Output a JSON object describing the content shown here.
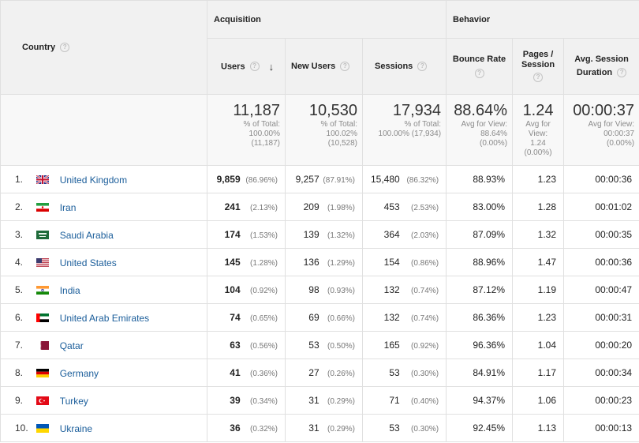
{
  "header": {
    "country": "Country",
    "acquisition": "Acquisition",
    "behavior": "Behavior",
    "users": "Users",
    "new_users": "New Users",
    "sessions": "Sessions",
    "bounce_rate": "Bounce Rate",
    "pages_session_1": "Pages /",
    "pages_session_2": "Session",
    "avg_session_1": "Avg. Session",
    "avg_session_2": "Duration",
    "help_glyph": "?",
    "sort_glyph": "↓"
  },
  "totals": {
    "users": {
      "big": "11,187",
      "l1": "% of Total:",
      "l2": "100.00%",
      "l3": "(11,187)"
    },
    "new_users": {
      "big": "10,530",
      "l1": "% of Total:",
      "l2": "100.02%",
      "l3": "(10,528)"
    },
    "sessions": {
      "big": "17,934",
      "l1": "% of Total:",
      "l2": "100.00% (17,934)"
    },
    "bounce_rate": {
      "big": "88.64%",
      "l1": "Avg for View:",
      "l2": "88.64%",
      "l3": "(0.00%)"
    },
    "pages": {
      "big": "1.24",
      "l1": "Avg for",
      "l2": "View:",
      "l3": "1.24",
      "l4": "(0.00%)"
    },
    "duration": {
      "big": "00:00:37",
      "l1": "Avg for View:",
      "l2": "00:00:37",
      "l3": "(0.00%)"
    }
  },
  "rows": [
    {
      "idx": "1.",
      "flag": "gb",
      "country": "United Kingdom",
      "users": "9,859",
      "users_pct": "(86.96%)",
      "new_users": "9,257",
      "new_users_pct": "(87.91%)",
      "sessions": "15,480",
      "sessions_pct": "(86.32%)",
      "bounce": "88.93%",
      "pages": "1.23",
      "duration": "00:00:36"
    },
    {
      "idx": "2.",
      "flag": "ir",
      "country": "Iran",
      "users": "241",
      "users_pct": "(2.13%)",
      "new_users": "209",
      "new_users_pct": "(1.98%)",
      "sessions": "453",
      "sessions_pct": "(2.53%)",
      "bounce": "83.00%",
      "pages": "1.28",
      "duration": "00:01:02"
    },
    {
      "idx": "3.",
      "flag": "sa",
      "country": "Saudi Arabia",
      "users": "174",
      "users_pct": "(1.53%)",
      "new_users": "139",
      "new_users_pct": "(1.32%)",
      "sessions": "364",
      "sessions_pct": "(2.03%)",
      "bounce": "87.09%",
      "pages": "1.32",
      "duration": "00:00:35"
    },
    {
      "idx": "4.",
      "flag": "us",
      "country": "United States",
      "users": "145",
      "users_pct": "(1.28%)",
      "new_users": "136",
      "new_users_pct": "(1.29%)",
      "sessions": "154",
      "sessions_pct": "(0.86%)",
      "bounce": "88.96%",
      "pages": "1.47",
      "duration": "00:00:36"
    },
    {
      "idx": "5.",
      "flag": "in",
      "country": "India",
      "users": "104",
      "users_pct": "(0.92%)",
      "new_users": "98",
      "new_users_pct": "(0.93%)",
      "sessions": "132",
      "sessions_pct": "(0.74%)",
      "bounce": "87.12%",
      "pages": "1.19",
      "duration": "00:00:47"
    },
    {
      "idx": "6.",
      "flag": "ae",
      "country": "United Arab Emirates",
      "users": "74",
      "users_pct": "(0.65%)",
      "new_users": "69",
      "new_users_pct": "(0.66%)",
      "sessions": "132",
      "sessions_pct": "(0.74%)",
      "bounce": "86.36%",
      "pages": "1.23",
      "duration": "00:00:31"
    },
    {
      "idx": "7.",
      "flag": "qa",
      "country": "Qatar",
      "users": "63",
      "users_pct": "(0.56%)",
      "new_users": "53",
      "new_users_pct": "(0.50%)",
      "sessions": "165",
      "sessions_pct": "(0.92%)",
      "bounce": "96.36%",
      "pages": "1.04",
      "duration": "00:00:20"
    },
    {
      "idx": "8.",
      "flag": "de",
      "country": "Germany",
      "users": "41",
      "users_pct": "(0.36%)",
      "new_users": "27",
      "new_users_pct": "(0.26%)",
      "sessions": "53",
      "sessions_pct": "(0.30%)",
      "bounce": "84.91%",
      "pages": "1.17",
      "duration": "00:00:34"
    },
    {
      "idx": "9.",
      "flag": "tr",
      "country": "Turkey",
      "users": "39",
      "users_pct": "(0.34%)",
      "new_users": "31",
      "new_users_pct": "(0.29%)",
      "sessions": "71",
      "sessions_pct": "(0.40%)",
      "bounce": "94.37%",
      "pages": "1.06",
      "duration": "00:00:23"
    },
    {
      "idx": "10.",
      "flag": "ua",
      "country": "Ukraine",
      "users": "36",
      "users_pct": "(0.32%)",
      "new_users": "31",
      "new_users_pct": "(0.29%)",
      "sessions": "53",
      "sessions_pct": "(0.30%)",
      "bounce": "92.45%",
      "pages": "1.13",
      "duration": "00:00:13"
    }
  ]
}
